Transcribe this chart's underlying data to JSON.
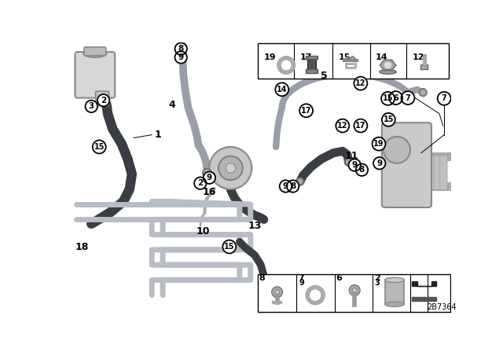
{
  "bg_color": "#ffffff",
  "part_number": "2B7364",
  "dark_hose": "#3a3d42",
  "gray_pipe": "#9a9ea8",
  "light_pipe": "#b8bcc4",
  "reservoir_color": "#d0d2d4",
  "pump_color": "#c0c2c4",
  "rack_color": "#c8cacc"
}
